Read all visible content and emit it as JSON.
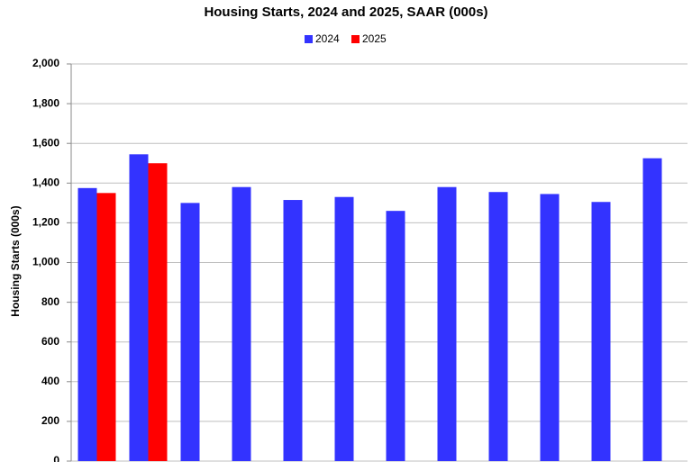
{
  "chart_data": {
    "type": "bar",
    "title": "Housing Starts,  2024 and 2025, SAAR (000s)",
    "y_label": "Housing Starts (000s)",
    "categories": [
      null,
      null,
      null,
      null,
      null,
      null,
      null,
      null,
      null,
      null,
      null,
      null
    ],
    "series": [
      {
        "name": "2024",
        "color": "#3333ff",
        "values": [
          1375,
          1545,
          1300,
          1380,
          1315,
          1330,
          1260,
          1380,
          1355,
          1345,
          1305,
          1525
        ]
      },
      {
        "name": "2025",
        "color": "#ff0000",
        "values": [
          1350,
          1500,
          null,
          null,
          null,
          null,
          null,
          null,
          null,
          null,
          null,
          null
        ]
      }
    ],
    "ylim": [
      0,
      2000
    ],
    "yticks": [
      0,
      200,
      400,
      600,
      800,
      {
        "value": 1000,
        "label": "1,000"
      },
      {
        "value": 1200,
        "label": "1,200"
      },
      {
        "value": 1400,
        "label": "1,400"
      },
      {
        "value": 1600,
        "label": "1,600"
      },
      {
        "value": 1800,
        "label": "1,800"
      },
      {
        "value": 2000,
        "label": "2,000"
      }
    ],
    "grid": true,
    "legend": "top"
  }
}
